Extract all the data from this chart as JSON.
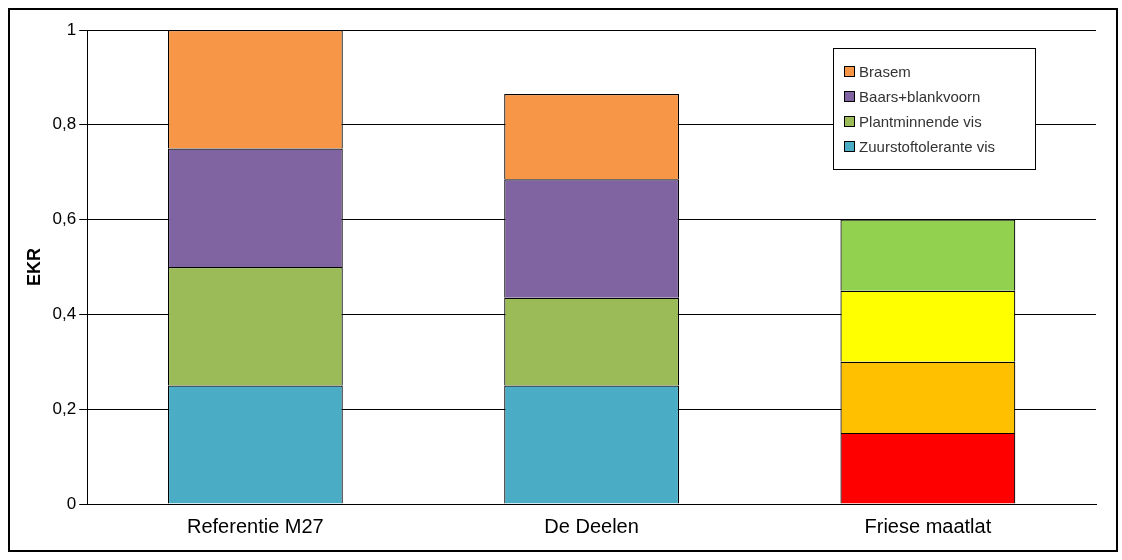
{
  "chart_data": {
    "type": "bar",
    "stacked": true,
    "ylabel": "EKR",
    "categories": [
      "Referentie M27",
      "De Deelen",
      "Friese maatlat"
    ],
    "series": [
      {
        "name": "Zuurstoftolerante vis",
        "color": "#4bacc6",
        "colors": [
          "#4bacc6",
          "#4bacc6",
          "#ff0000"
        ],
        "values": [
          0.25,
          0.25,
          0.15
        ]
      },
      {
        "name": "Plantminnende vis",
        "color": "#9bbb59",
        "colors": [
          "#9bbb59",
          "#9bbb59",
          "#ffc000"
        ],
        "values": [
          0.25,
          0.185,
          0.15
        ]
      },
      {
        "name": "Baars+blankvoorn",
        "color": "#8064a2",
        "colors": [
          "#8064a2",
          "#8064a2",
          "#ffff00"
        ],
        "values": [
          0.25,
          0.25,
          0.15
        ]
      },
      {
        "name": "Brasem",
        "color": "#f79646",
        "colors": [
          "#f79646",
          "#f79646",
          "#92d050"
        ],
        "values": [
          0.25,
          0.18,
          0.15
        ]
      }
    ],
    "ylim": [
      0,
      1
    ],
    "yticks": [
      0,
      {
        "value": 0.2,
        "label": "0,2"
      },
      {
        "value": 0.4,
        "label": "0,4"
      },
      {
        "value": 0.6,
        "label": "0,6"
      },
      {
        "value": 0.8,
        "label": "0,8"
      },
      1
    ],
    "grid": "y",
    "legend": "top right"
  }
}
